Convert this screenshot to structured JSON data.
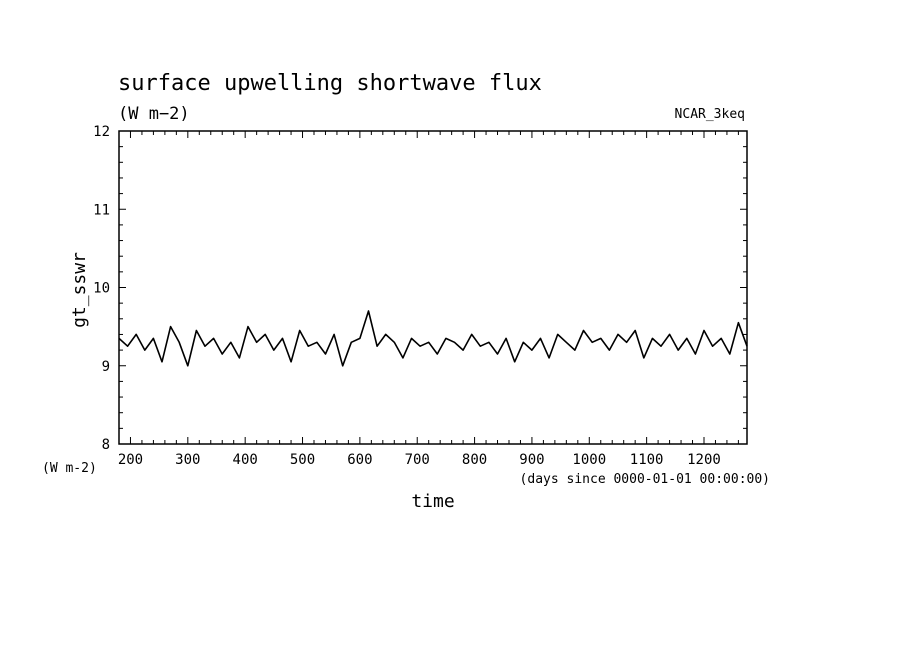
{
  "chart_data": {
    "type": "line",
    "title": "surface upwelling shortwave flux",
    "subtitle": "(W m−2)",
    "source_label": "NCAR_3keq",
    "ylabel": "gt_sswr",
    "yunit_label": "(W m-2)",
    "xlabel": "time",
    "xunit_label": "(days since 0000-01-01 00:00:00)",
    "xlim": [
      180,
      1275
    ],
    "ylim": [
      8,
      12
    ],
    "x_ticks": [
      200,
      300,
      400,
      500,
      600,
      700,
      800,
      900,
      1000,
      1100,
      1200
    ],
    "y_ticks": [
      8,
      9,
      10,
      11,
      12
    ],
    "grid": false,
    "series": [
      {
        "x": [
          180,
          195,
          210,
          225,
          240,
          255,
          270,
          285,
          300,
          315,
          330,
          345,
          360,
          375,
          390,
          405,
          420,
          435,
          450,
          465,
          480,
          495,
          510,
          525,
          540,
          555,
          570,
          585,
          600,
          615,
          630,
          645,
          660,
          675,
          690,
          705,
          720,
          735,
          750,
          765,
          780,
          795,
          810,
          825,
          840,
          855,
          870,
          885,
          900,
          915,
          930,
          945,
          960,
          975,
          990,
          1005,
          1020,
          1035,
          1050,
          1065,
          1080,
          1095,
          1110,
          1125,
          1140,
          1155,
          1170,
          1185,
          1200,
          1215,
          1230,
          1245,
          1260,
          1275
        ],
        "y": [
          9.35,
          9.25,
          9.4,
          9.2,
          9.35,
          9.05,
          9.5,
          9.3,
          9.0,
          9.45,
          9.25,
          9.35,
          9.15,
          9.3,
          9.1,
          9.5,
          9.3,
          9.4,
          9.2,
          9.35,
          9.05,
          9.45,
          9.25,
          9.3,
          9.15,
          9.4,
          9.0,
          9.3,
          9.35,
          9.7,
          9.25,
          9.4,
          9.3,
          9.1,
          9.35,
          9.25,
          9.3,
          9.15,
          9.35,
          9.3,
          9.2,
          9.4,
          9.25,
          9.3,
          9.15,
          9.35,
          9.05,
          9.3,
          9.2,
          9.35,
          9.1,
          9.4,
          9.3,
          9.2,
          9.45,
          9.3,
          9.35,
          9.2,
          9.4,
          9.3,
          9.45,
          9.1,
          9.35,
          9.25,
          9.4,
          9.2,
          9.35,
          9.15,
          9.45,
          9.25,
          9.35,
          9.15,
          9.55,
          9.25
        ]
      }
    ]
  }
}
